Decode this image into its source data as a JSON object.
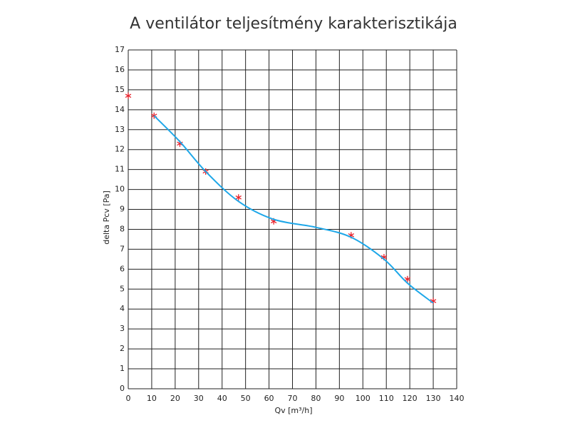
{
  "chart_data": {
    "type": "line",
    "title": "A ventilátor teljesítmény karakterisztikája",
    "x_label": "Qv   [m³/h]",
    "y_label": "delta  Pcv  [Pa]",
    "xlim": [
      0,
      140
    ],
    "ylim": [
      0,
      17
    ],
    "xticks": [
      0,
      10,
      20,
      30,
      40,
      50,
      60,
      70,
      80,
      90,
      100,
      110,
      120,
      130,
      140
    ],
    "yticks": [
      0,
      1,
      2,
      3,
      4,
      5,
      6,
      7,
      8,
      9,
      10,
      11,
      12,
      13,
      14,
      15,
      16,
      17
    ],
    "grid": true,
    "series": [
      {
        "color": "#e8202a",
        "marker": "asterisk",
        "line": false,
        "x": [
          0,
          11,
          22,
          33,
          47,
          62,
          95,
          109,
          119,
          130
        ],
        "values": [
          14.7,
          13.7,
          12.3,
          10.9,
          9.6,
          8.4,
          7.7,
          6.6,
          5.5,
          4.4
        ]
      },
      {
        "color": "#1ea7e8",
        "marker": "none",
        "line": true,
        "smooth": true,
        "x": [
          11,
          22,
          33,
          47,
          62,
          80,
          95,
          109,
          119,
          130
        ],
        "values": [
          13.7,
          12.4,
          10.9,
          9.4,
          8.5,
          8.1,
          7.6,
          6.5,
          5.3,
          4.3
        ]
      }
    ]
  }
}
